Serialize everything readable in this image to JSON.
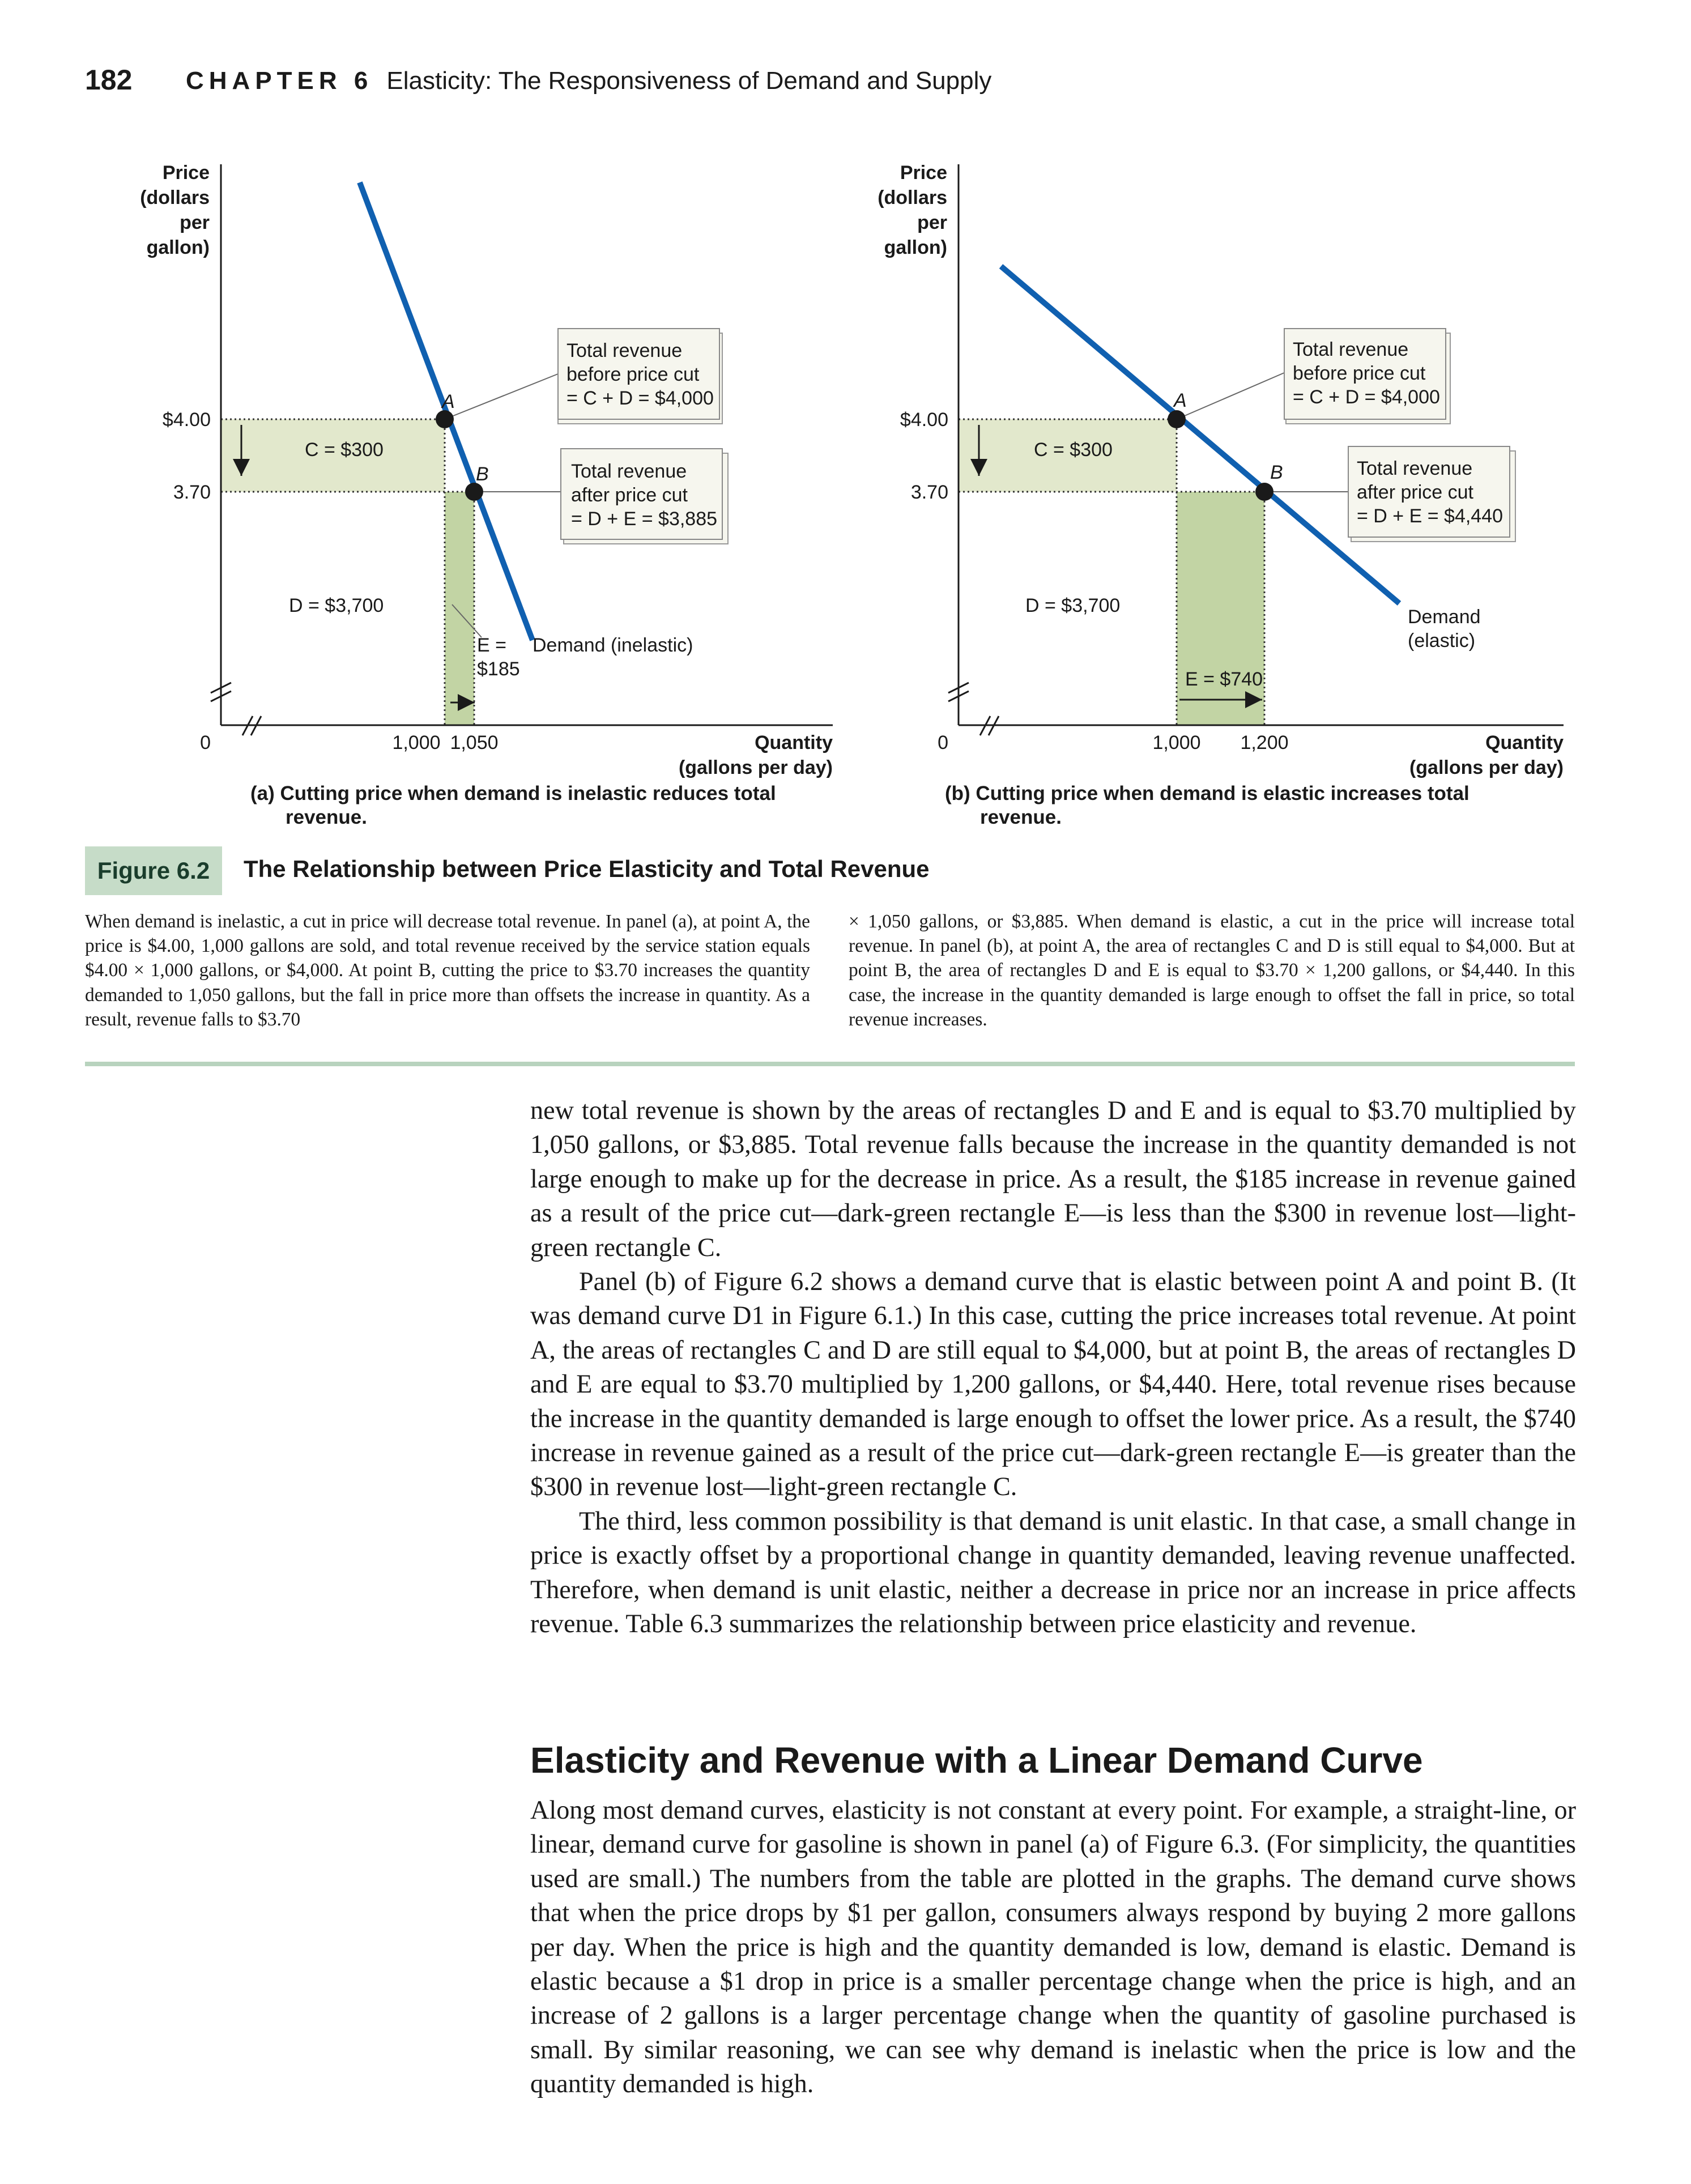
{
  "header": {
    "page_number": "182",
    "chapter_label": "CHAPTER 6",
    "chapter_title": "Elasticity: The Responsiveness of Demand and Supply"
  },
  "figure": {
    "badge": "Figure 6.2",
    "title": "The Relationship between Price Elasticity and Total Revenue",
    "panels": [
      {
        "y_label": [
          "Price",
          "(dollars",
          "per",
          "gallon)"
        ],
        "x_label": [
          "Quantity",
          "(gallons per day)"
        ],
        "origin": "0",
        "price_ticks": [
          "$4.00",
          "3.70"
        ],
        "qty_ticks": [
          "1,000",
          "1,050"
        ],
        "point_a": "A",
        "point_b": "B",
        "rect_c": "C = $300",
        "rect_d": "D = $3,700",
        "rect_e": [
          "E =",
          "$185"
        ],
        "box_before": [
          "Total revenue",
          "before price cut",
          "= C + D = $4,000"
        ],
        "box_after": [
          "Total revenue",
          "after price cut",
          "= D + E  = $3,885"
        ],
        "curve_label": [
          "Demand (inelastic)"
        ],
        "caption_line1": "(a) Cutting price when demand is inelastic reduces total",
        "caption_line2": "revenue."
      },
      {
        "y_label": [
          "Price",
          "(dollars",
          "per",
          "gallon)"
        ],
        "x_label": [
          "Quantity",
          "(gallons per day)"
        ],
        "origin": "0",
        "price_ticks": [
          "$4.00",
          "3.70"
        ],
        "qty_ticks": [
          "1,000",
          "1,200"
        ],
        "point_a": "A",
        "point_b": "B",
        "rect_c": "C = $300",
        "rect_d": "D = $3,700",
        "rect_e": [
          "E = $740"
        ],
        "box_before": [
          "Total revenue",
          "before price cut",
          "= C + D = $4,000"
        ],
        "box_after": [
          "Total revenue",
          "after price cut",
          "= D + E = $4,440"
        ],
        "curve_label": [
          "Demand",
          "(elastic)"
        ],
        "caption_line1": "(b) Cutting price when demand is elastic increases total",
        "caption_line2": "revenue."
      }
    ],
    "caption_left": "When demand is inelastic, a cut in price will decrease total revenue. In panel (a), at point A, the price is $4.00, 1,000 gallons are sold, and total revenue received by the service station equals $4.00 × 1,000 gallons, or $4,000. At point B, cutting the price to $3.70 increases the quantity demanded to 1,050 gallons, but the fall in price more than offsets the increase in quantity. As a result, revenue falls to $3.70",
    "caption_right": "× 1,050 gallons, or $3,885. When demand is elastic, a cut in the price will increase total revenue. In panel (b), at point A, the area of rectangles C and D is still equal to $4,000. But at point B, the area of rectangles D and E is equal to $3.70 × 1,200 gallons, or $4,440. In this case, the increase in the quantity demanded is large enough to offset the fall in price, so total revenue increases."
  },
  "body": {
    "p1": "new total revenue is shown by the areas of rectangles D and E and is equal to $3.70 multiplied by 1,050 gallons, or $3,885. Total revenue falls because the increase in the quantity demanded is not large enough to make up for the decrease in price. As a result, the $185 increase in revenue gained as a result of the price cut—dark-green rectangle E—is less than the $300 in revenue lost—light-green rectangle C.",
    "p2": "Panel (b) of Figure 6.2 shows a demand curve that is elastic between point A and point B. (It was demand curve D1 in Figure 6.1.) In this case, cutting the price increases total revenue. At point A, the areas of rectangles C and D are still equal to $4,000, but at point B, the areas of rectangles D and E are equal to $3.70 multiplied by 1,200 gallons, or $4,440. Here, total revenue rises because the increase in the quantity demanded is large enough to offset the lower price. As a result, the $740 increase in revenue gained as a result of the price cut—dark-green rectangle E—is greater than the $300 in revenue lost—light-green rectangle C.",
    "p3": "The third, less common possibility is that demand is unit elastic. In that case, a small change in price is exactly offset by a proportional change in quantity demanded, leaving revenue unaffected. Therefore, when demand is unit elastic, neither a decrease in price nor an increase in price affects revenue. Table 6.3 summarizes the relationship between price elasticity and revenue.",
    "section_heading": "Elasticity and Revenue with a Linear Demand Curve",
    "p4": "Along most demand curves, elasticity is not constant at every point. For example, a straight-line, or linear, demand curve for gasoline is shown in panel (a) of Figure 6.3. (For simplicity, the quantities used are small.) The numbers from the table are plotted in the graphs. The demand curve shows that when the price drops by $1 per gallon, consumers always respond by buying 2 more gallons per day. When the price is high and the quantity demanded is low, demand is elastic. Demand is elastic because a $1 drop in price is a smaller percentage change when the price is high, and an increase of 2 gallons is a larger percentage change when the quantity of gasoline purchased is small. By similar reasoning, we can see why demand is inelastic when the price is low and the quantity demanded is high."
  },
  "colors": {
    "demand_curve": "#1060b0",
    "light_green": "#e2e8cc",
    "dark_green": "#c2d4a4",
    "figure_badge": "#c6dcc8",
    "rule": "#b8d3be"
  }
}
